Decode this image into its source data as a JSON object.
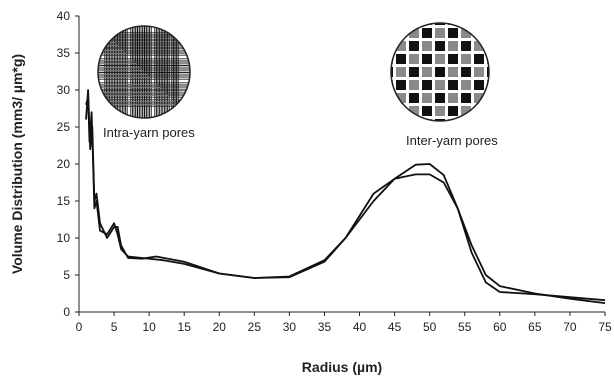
{
  "chart_data": {
    "type": "line",
    "title": "",
    "xlabel": "Radius (µm)",
    "ylabel": "Volume Distribution (mm3/ µm*g)",
    "xlim": [
      0,
      75
    ],
    "ylim": [
      0,
      40
    ],
    "x_ticks": [
      "0",
      "5",
      "10",
      "15",
      "20",
      "25",
      "30",
      "35",
      "40",
      "45",
      "50",
      "55",
      "60",
      "65",
      "70",
      "75"
    ],
    "y_ticks": [
      "0",
      "5",
      "10",
      "15",
      "20",
      "25",
      "30",
      "35",
      "40"
    ],
    "grid": false,
    "legend": "none",
    "annotations": [
      {
        "text": "Intra-yarn pores",
        "icon": "intra-yarn-weave-icon"
      },
      {
        "text": "Inter-yarn pores",
        "icon": "inter-yarn-weave-icon"
      }
    ],
    "series": [
      {
        "color": "#111111",
        "x": [
          1.0,
          1.3,
          1.5,
          1.8,
          2.2,
          2.5,
          3.0,
          4.0,
          5.0,
          5.5,
          6.0,
          7.0,
          9,
          12,
          15,
          20,
          25,
          30,
          35,
          38,
          42,
          45,
          48,
          50,
          52,
          54,
          56,
          58,
          60,
          65,
          70,
          75
        ],
        "y": [
          28,
          29,
          23,
          27,
          14,
          15,
          11,
          10.5,
          12,
          10.5,
          8.5,
          7.5,
          7.3,
          7,
          6.5,
          5.2,
          4.6,
          4.8,
          7,
          10,
          15,
          18,
          19.9,
          20,
          18.5,
          14,
          8,
          4,
          2.7,
          2.4,
          2.0,
          1.6
        ]
      },
      {
        "color": "#111111",
        "x": [
          1.0,
          1.3,
          1.6,
          1.9,
          2.2,
          2.5,
          3.0,
          4.0,
          5.0,
          5.5,
          6.0,
          7.0,
          9,
          11,
          15,
          20,
          25,
          30,
          35,
          38,
          42,
          45,
          48,
          50,
          52,
          54,
          56,
          58,
          60,
          65,
          70,
          75
        ],
        "y": [
          26,
          30,
          22,
          25,
          15,
          16,
          12,
          10,
          11.5,
          11.5,
          9,
          7.3,
          7.2,
          7.5,
          6.8,
          5.2,
          4.6,
          4.7,
          6.8,
          10,
          16,
          18,
          18.6,
          18.6,
          17.5,
          14,
          9,
          5,
          3.5,
          2.5,
          1.8,
          1.2
        ]
      }
    ]
  }
}
